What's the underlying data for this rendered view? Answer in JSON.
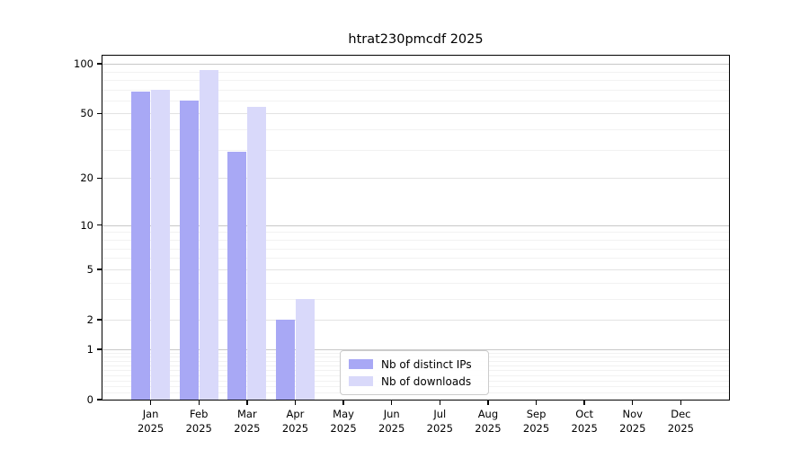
{
  "chart_data": {
    "type": "bar",
    "title": "htrat230pmcdf 2025",
    "categories": [
      "Jan",
      "Feb",
      "Mar",
      "Apr",
      "May",
      "Jun",
      "Jul",
      "Aug",
      "Sep",
      "Oct",
      "Nov",
      "Dec"
    ],
    "x_tick_second_line": "2025",
    "series": [
      {
        "name": "Nb of distinct IPs",
        "color": "#a8a8f5",
        "values": [
          68,
          60,
          29,
          2,
          0,
          0,
          0,
          0,
          0,
          0,
          0,
          0
        ]
      },
      {
        "name": "Nb of downloads",
        "color": "#d9d9fa",
        "values": [
          70,
          92,
          55,
          3,
          0,
          0,
          0,
          0,
          0,
          0,
          0,
          0
        ]
      }
    ],
    "yscale": "log1p",
    "yticks": [
      100,
      50,
      20,
      10,
      5,
      2,
      1,
      0
    ],
    "major_gridline_values": [
      100,
      10,
      1
    ],
    "mid_gridline_values": [
      50,
      20,
      5,
      2
    ],
    "minor_gridline_values": [
      90,
      80,
      70,
      60,
      40,
      30,
      9,
      8,
      7,
      6,
      4,
      3,
      0.9,
      0.8,
      0.7,
      0.6,
      0.5,
      0.4,
      0.3,
      0.2,
      0.1
    ],
    "ylim": [
      0,
      112
    ],
    "grid": "horizontal",
    "legend_position": "lower-center",
    "colors": {
      "major_grid": "#c8c8c8",
      "mid_grid": "#e3e3e3",
      "minor_grid": "#f2f2f2",
      "axis": "#000000"
    }
  }
}
